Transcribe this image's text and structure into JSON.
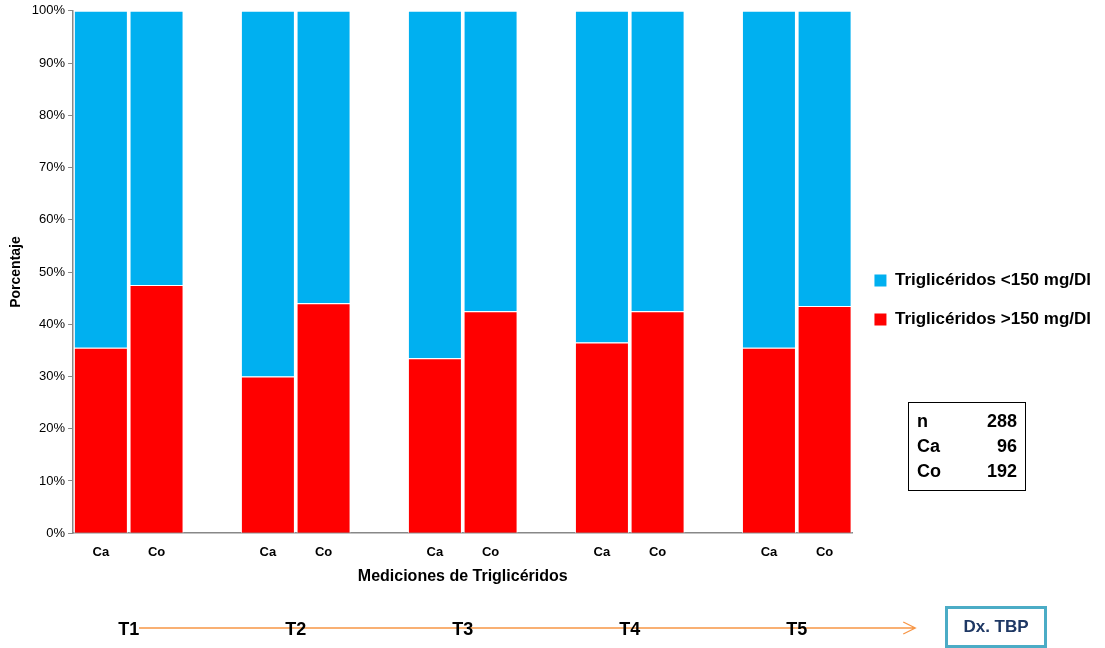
{
  "chart_data": {
    "type": "bar",
    "stacked": true,
    "xlabel": "Mediciones de Triglicéridos",
    "ylabel": "Porcentaje",
    "categories": [
      "Ca",
      "Co",
      null,
      "Ca",
      "Co",
      null,
      "Ca",
      "Co",
      null,
      "Ca",
      "Co",
      null,
      "Ca",
      "Co"
    ],
    "series": [
      {
        "name": "Triglicéridos >150 mg/Dl",
        "color": "#ff0000",
        "values": [
          35.5,
          47.5,
          null,
          30,
          44,
          null,
          33.5,
          42.5,
          null,
          36.5,
          42.5,
          null,
          35.5,
          43.5
        ]
      },
      {
        "name": "Triglicéridos <150 mg/Dl",
        "color": "#00b0f0",
        "values": [
          64.5,
          52.5,
          null,
          70,
          56,
          null,
          66.5,
          57.5,
          null,
          63.5,
          57.5,
          null,
          64.5,
          56.5
        ]
      }
    ],
    "ylim": [
      0,
      100
    ],
    "yticks": [
      {
        "value": 0,
        "label": "0%"
      },
      {
        "value": 10,
        "label": "10%"
      },
      {
        "value": 20,
        "label": "20%"
      },
      {
        "value": 30,
        "label": "30%"
      },
      {
        "value": 40,
        "label": "40%"
      },
      {
        "value": 50,
        "label": "50%"
      },
      {
        "value": 60,
        "label": "60%"
      },
      {
        "value": 70,
        "label": "70%"
      },
      {
        "value": 80,
        "label": "80%"
      },
      {
        "value": 90,
        "label": "90%"
      },
      {
        "value": 100,
        "label": "100%"
      }
    ],
    "grid": false,
    "legend": "right",
    "annotations": [
      "T1",
      "T2",
      "T3",
      "T4",
      "T5",
      "Dx. TBP",
      "n 288",
      "Ca 96",
      "Co 192"
    ]
  }
}
